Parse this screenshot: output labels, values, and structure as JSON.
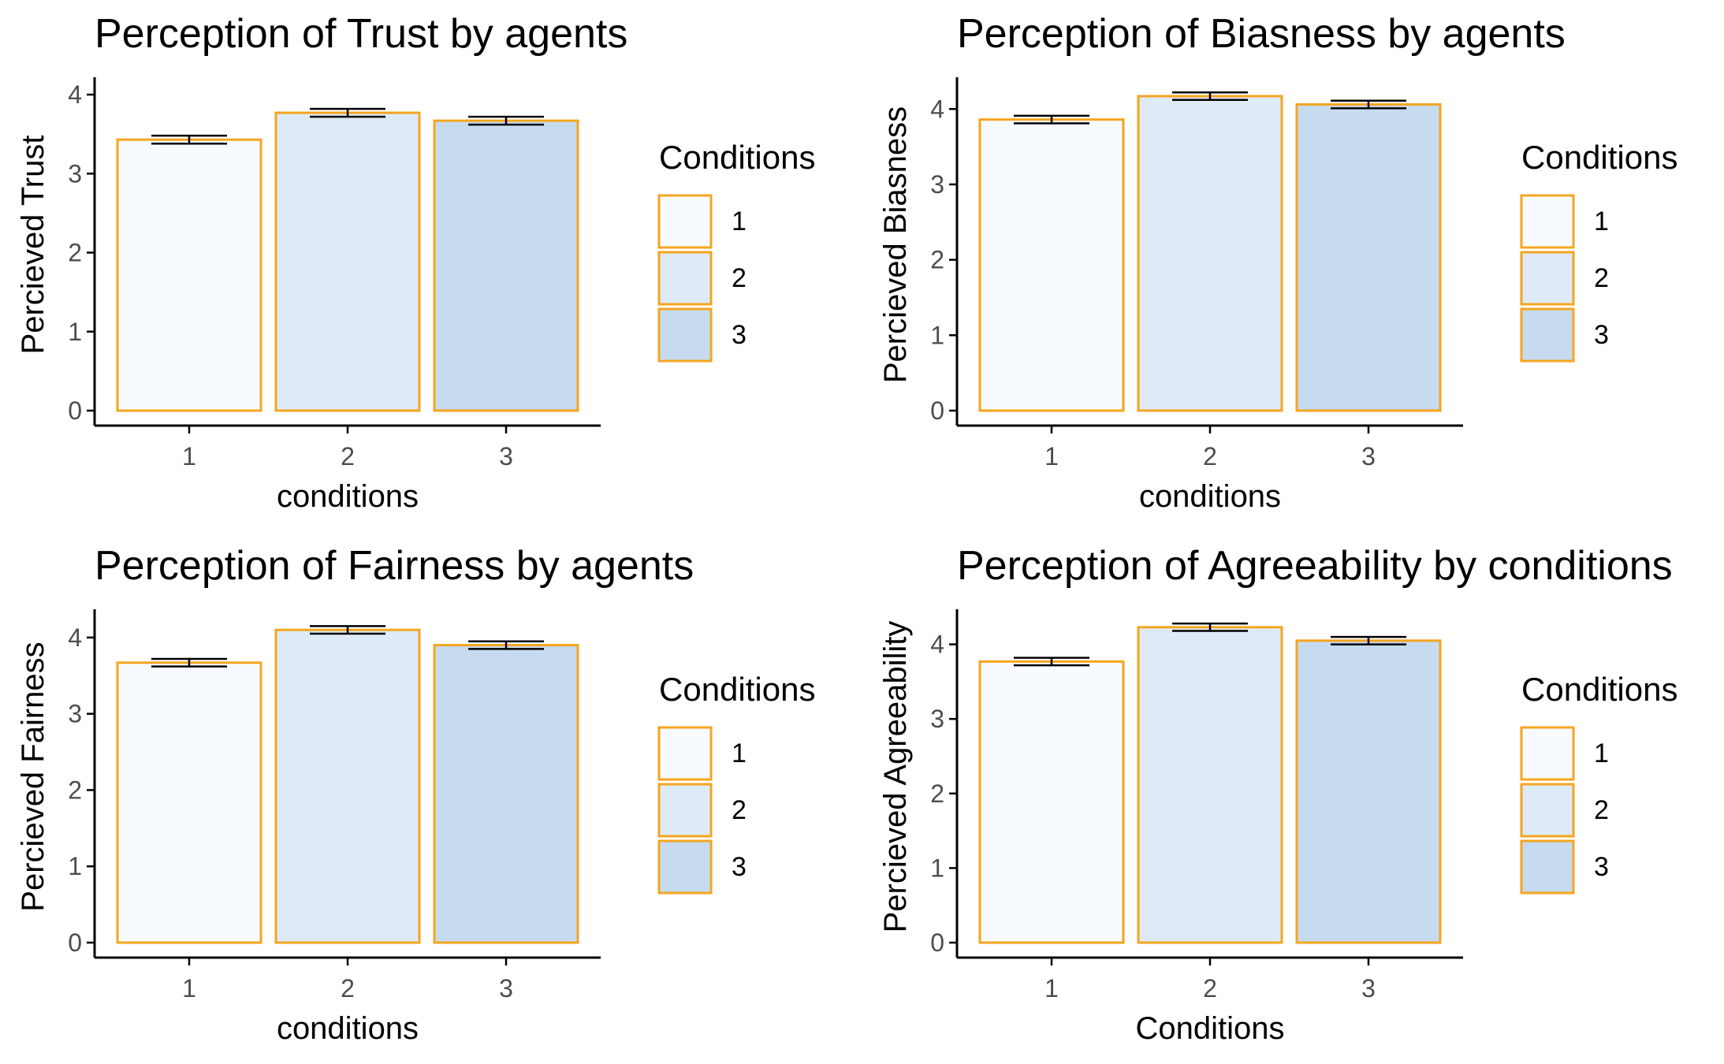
{
  "legend_title": "Conditions",
  "colors": {
    "bar_fills": [
      "#f7fbff",
      "#deebf7",
      "#c6dbef"
    ],
    "bar_stroke": "#f5a51f",
    "axis": "#000000",
    "tick_text": "#4d4d4d",
    "title_text": "#000000"
  },
  "chart_data": [
    {
      "type": "bar",
      "title": "Perception of Trust by agents",
      "xlabel": "conditions",
      "ylabel": "Percieved Trust",
      "categories": [
        "1",
        "2",
        "3"
      ],
      "values": [
        3.43,
        3.77,
        3.67
      ],
      "errors": [
        0.05,
        0.05,
        0.05
      ],
      "yticks": [
        "0",
        "1",
        "2",
        "3",
        "4"
      ],
      "ylim": [
        0,
        4.2
      ],
      "legend": {
        "title": "Conditions",
        "entries": [
          "1",
          "2",
          "3"
        ],
        "placement": "right"
      }
    },
    {
      "type": "bar",
      "title": "Perception of Biasness by agents",
      "xlabel": "conditions",
      "ylabel": "Percieved Biasness",
      "categories": [
        "1",
        "2",
        "3"
      ],
      "values": [
        3.86,
        4.17,
        4.06
      ],
      "errors": [
        0.05,
        0.05,
        0.05
      ],
      "yticks": [
        "0",
        "1",
        "2",
        "3",
        "4"
      ],
      "ylim": [
        0,
        4.4
      ],
      "legend": {
        "title": "Conditions",
        "entries": [
          "1",
          "2",
          "3"
        ],
        "placement": "right"
      }
    },
    {
      "type": "bar",
      "title": "Perception of Fairness by agents",
      "xlabel": "conditions",
      "ylabel": "Percieved Fairness",
      "categories": [
        "1",
        "2",
        "3"
      ],
      "values": [
        3.67,
        4.1,
        3.9
      ],
      "errors": [
        0.05,
        0.05,
        0.05
      ],
      "yticks": [
        "0",
        "1",
        "2",
        "3",
        "4"
      ],
      "ylim": [
        0,
        4.35
      ],
      "legend": {
        "title": "Conditions",
        "entries": [
          "1",
          "2",
          "3"
        ],
        "placement": "right"
      }
    },
    {
      "type": "bar",
      "title": "Perception of Agreeability by conditions",
      "xlabel": "Conditions",
      "ylabel": "Percieved Agreeability",
      "categories": [
        "1",
        "2",
        "3"
      ],
      "values": [
        3.77,
        4.23,
        4.05
      ],
      "errors": [
        0.05,
        0.05,
        0.05
      ],
      "yticks": [
        "0",
        "1",
        "2",
        "3",
        "4"
      ],
      "ylim": [
        0,
        4.45
      ],
      "legend": {
        "title": "Conditions",
        "entries": [
          "1",
          "2",
          "3"
        ],
        "placement": "right"
      }
    }
  ]
}
